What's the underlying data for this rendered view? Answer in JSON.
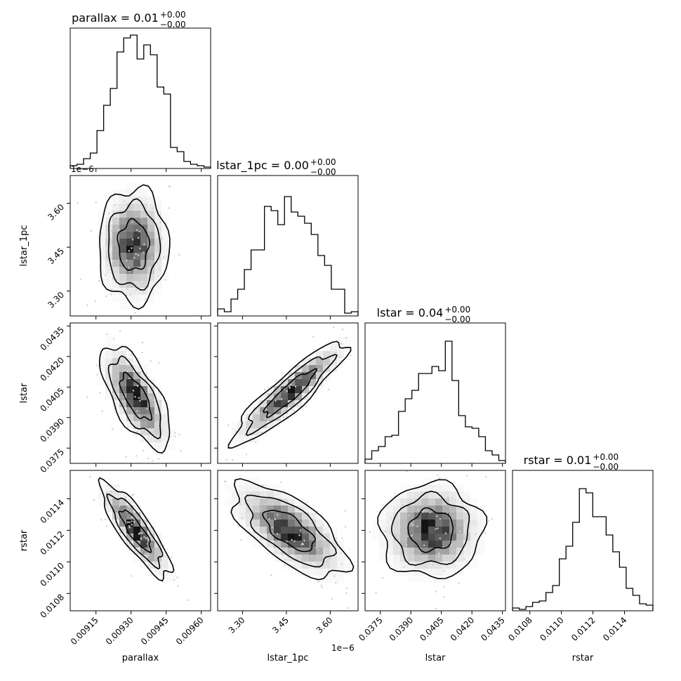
{
  "chart_data": {
    "type": "corner",
    "parameters": [
      "parallax",
      "lstar_1pc",
      "lstar",
      "rstar"
    ],
    "axis_labels": {
      "parallax": "parallax",
      "lstar_1pc": "lstar_1pc",
      "lstar": "lstar",
      "rstar": "rstar"
    },
    "titles": [
      {
        "param": "parallax",
        "name": "parallax",
        "value": "0.01",
        "plus": "+0.00",
        "minus": "−0.00"
      },
      {
        "param": "lstar_1pc",
        "name": "lstar_1pc",
        "value": "0.00",
        "plus": "+0.00",
        "minus": "−0.00"
      },
      {
        "param": "lstar",
        "name": "lstar",
        "value": "0.04",
        "plus": "+0.00",
        "minus": "−0.00"
      },
      {
        "param": "rstar",
        "name": "rstar",
        "value": "0.01",
        "plus": "+0.00",
        "minus": "−0.00"
      }
    ],
    "ranges": {
      "parallax": [
        0.00904,
        0.00964
      ],
      "lstar_1pc": [
        3.215e-06,
        3.695e-06
      ],
      "lstar": [
        0.03675,
        0.04365
      ],
      "rstar": [
        0.01069,
        0.01158
      ]
    },
    "ticks": {
      "parallax": {
        "values": [
          0.00915,
          0.0093,
          0.00945,
          0.0096
        ],
        "labels": [
          "0.00915",
          "0.00930",
          "0.00945",
          "0.00960"
        ]
      },
      "lstar_1pc": {
        "values": [
          3.3e-06,
          3.45e-06,
          3.6e-06
        ],
        "labels": [
          "3.30",
          "3.45",
          "3.60"
        ]
      },
      "lstar": {
        "values": [
          0.0375,
          0.039,
          0.0405,
          0.042,
          0.0435
        ],
        "labels": [
          "0.0375",
          "0.0390",
          "0.0405",
          "0.0420",
          "0.0435"
        ]
      },
      "rstar": {
        "values": [
          0.0108,
          0.011,
          0.0112,
          0.0114
        ],
        "labels": [
          "0.0108",
          "0.0110",
          "0.0112",
          "0.0114"
        ]
      }
    },
    "offset_text": "1e−6",
    "histograms": {
      "parallax": [
        0.02,
        0.03,
        0.07,
        0.11,
        0.27,
        0.45,
        0.57,
        0.83,
        0.93,
        0.95,
        0.78,
        0.88,
        0.81,
        0.58,
        0.53,
        0.15,
        0.12,
        0.05,
        0.03,
        0.02,
        0.01
      ],
      "lstar_1pc": [
        0.05,
        0.03,
        0.12,
        0.19,
        0.33,
        0.47,
        0.47,
        0.78,
        0.75,
        0.65,
        0.85,
        0.74,
        0.71,
        0.66,
        0.58,
        0.43,
        0.36,
        0.19,
        0.19,
        0.02,
        0.03
      ],
      "lstar": [
        0.03,
        0.09,
        0.12,
        0.19,
        0.2,
        0.37,
        0.46,
        0.52,
        0.64,
        0.64,
        0.69,
        0.66,
        0.87,
        0.59,
        0.34,
        0.26,
        0.25,
        0.19,
        0.09,
        0.06,
        0.02
      ],
      "rstar": [
        0.02,
        0.01,
        0.03,
        0.06,
        0.07,
        0.13,
        0.18,
        0.37,
        0.46,
        0.63,
        0.87,
        0.84,
        0.67,
        0.67,
        0.54,
        0.42,
        0.31,
        0.16,
        0.11,
        0.05,
        0.04
      ]
    },
    "pairs": [
      {
        "x": "parallax",
        "y": "lstar_1pc",
        "mean": [
          0.00931,
          3.455e-06
        ],
        "sd": [
          6.5e-05,
          8.5e-08
        ],
        "corr": 0.0
      },
      {
        "x": "parallax",
        "y": "lstar",
        "mean": [
          0.00932,
          0.04
        ],
        "sd": [
          6.5e-05,
          0.0011
        ],
        "corr": -0.68
      },
      {
        "x": "lstar_1pc",
        "y": "lstar",
        "mean": [
          3.46e-06,
          0.0402
        ],
        "sd": [
          8.5e-08,
          0.0011
        ],
        "corr": 0.9
      },
      {
        "x": "parallax",
        "y": "rstar",
        "mean": [
          0.00932,
          0.0112
        ],
        "sd": [
          6.5e-05,
          0.00013
        ],
        "corr": -0.84
      },
      {
        "x": "lstar_1pc",
        "y": "rstar",
        "mean": [
          3.46e-06,
          0.0112
        ],
        "sd": [
          8.5e-08,
          0.00013
        ],
        "corr": -0.66
      },
      {
        "x": "lstar",
        "y": "rstar",
        "mean": [
          0.04,
          0.0112
        ],
        "sd": [
          0.0011,
          0.00013
        ],
        "corr": 0.0
      }
    ],
    "contour_levels": [
      0.39,
      0.86,
      0.99
    ],
    "grid": false
  }
}
